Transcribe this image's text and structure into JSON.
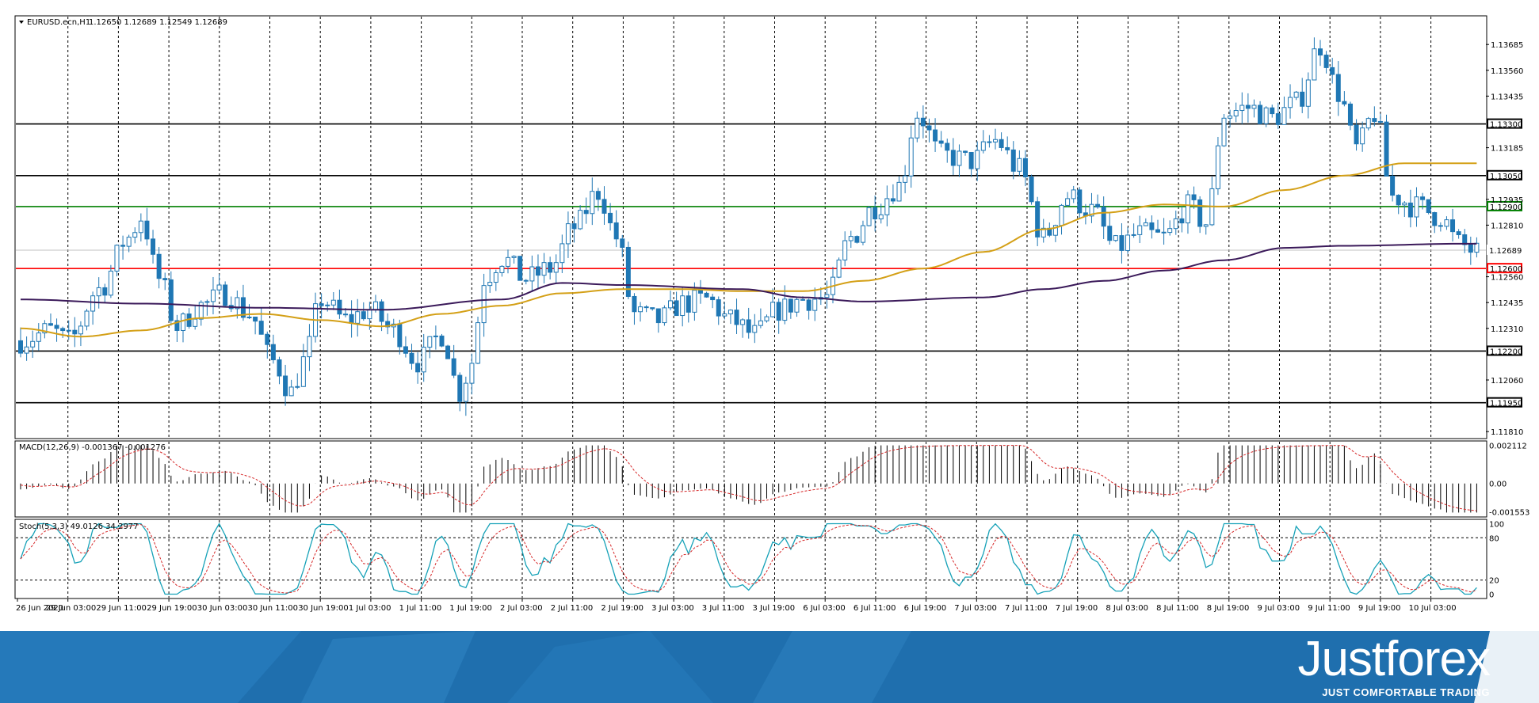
{
  "chart_header": {
    "symbol": "EURUSD.ecn,H1",
    "ohlc": "1.12650 1.12689 1.12549 1.12689"
  },
  "macd_header": "MACD(12,26,9) -0.001367 -0.001276",
  "stoch_header": "Stoch(5,3,3) 49.0126 34.2977",
  "brand": {
    "name": "Justforex",
    "tagline": "JUST COMFORTABLE TRADING"
  },
  "colors": {
    "up_candle": "#1f77b4",
    "down_candle": "#1f77b4",
    "ma_fast": "#d4a017",
    "ma_slow": "#3b1a5a",
    "resistance_green": "#008000",
    "support_red": "#ff0000",
    "level_black": "#000000",
    "macd_signal": "#d62728",
    "stoch_main": "#17a2b8",
    "stoch_signal": "#d62728",
    "banner": "#1f6fae"
  },
  "chart_data": [
    {
      "type": "candlestick",
      "title": "EURUSD.ecn,H1",
      "x_ticks": [
        "26 Jun 2020",
        "29 Jun 03:00",
        "29 Jun 11:00",
        "29 Jun 19:00",
        "30 Jun 03:00",
        "30 Jun 11:00",
        "30 Jun 19:00",
        "1 Jul 03:00",
        "1 Jul 11:00",
        "1 Jul 19:00",
        "2 Jul 03:00",
        "2 Jul 11:00",
        "2 Jul 19:00",
        "3 Jul 03:00",
        "3 Jul 11:00",
        "3 Jul 19:00",
        "6 Jul 03:00",
        "6 Jul 11:00",
        "6 Jul 19:00",
        "7 Jul 03:00",
        "7 Jul 11:00",
        "7 Jul 19:00",
        "8 Jul 03:00",
        "8 Jul 11:00",
        "8 Jul 19:00",
        "9 Jul 03:00",
        "9 Jul 11:00",
        "9 Jul 19:00",
        "10 Jul 03:00"
      ],
      "y_ticks": [
        "1.13685",
        "1.13560",
        "1.13435",
        "1.13185",
        "1.12935",
        "1.12810",
        "1.12560",
        "1.12435",
        "1.12310",
        "1.12060",
        "1.11810"
      ],
      "ylim": [
        1.1178,
        1.1382
      ],
      "horizontal_levels": [
        {
          "value": 1.133,
          "label": "1.13300",
          "color": "#000000"
        },
        {
          "value": 1.1305,
          "label": "1.13050",
          "color": "#000000"
        },
        {
          "value": 1.129,
          "label": "1.12900",
          "color": "#008000"
        },
        {
          "value": 1.12689,
          "label": "1.12689",
          "color": "#c0c0c0"
        },
        {
          "value": 1.126,
          "label": "1.12600",
          "color": "#ff0000"
        },
        {
          "value": 1.122,
          "label": "1.12200",
          "color": "#000000"
        },
        {
          "value": 1.1195,
          "label": "1.11950",
          "color": "#000000"
        }
      ],
      "ma_fast_anchors": [
        [
          0,
          1.1231
        ],
        [
          10,
          1.1227
        ],
        [
          20,
          1.123
        ],
        [
          30,
          1.1236
        ],
        [
          40,
          1.1238
        ],
        [
          50,
          1.1235
        ],
        [
          60,
          1.1232
        ],
        [
          70,
          1.1238
        ],
        [
          80,
          1.1242
        ],
        [
          90,
          1.1248
        ],
        [
          100,
          1.125
        ],
        [
          110,
          1.125
        ],
        [
          120,
          1.1249
        ],
        [
          130,
          1.1249
        ],
        [
          140,
          1.1254
        ],
        [
          150,
          1.126
        ],
        [
          160,
          1.1268
        ],
        [
          170,
          1.1279
        ],
        [
          180,
          1.1287
        ],
        [
          190,
          1.1291
        ],
        [
          200,
          1.129
        ],
        [
          210,
          1.1298
        ],
        [
          220,
          1.1305
        ],
        [
          230,
          1.1311
        ],
        [
          240,
          1.1311
        ]
      ],
      "ma_slow_anchors": [
        [
          0,
          1.1245
        ],
        [
          20,
          1.1243
        ],
        [
          40,
          1.1241
        ],
        [
          60,
          1.124
        ],
        [
          80,
          1.1245
        ],
        [
          90,
          1.1253
        ],
        [
          100,
          1.1252
        ],
        [
          120,
          1.125
        ],
        [
          130,
          1.1246
        ],
        [
          140,
          1.1244
        ],
        [
          160,
          1.1246
        ],
        [
          170,
          1.125
        ],
        [
          180,
          1.1254
        ],
        [
          190,
          1.1259
        ],
        [
          200,
          1.1264
        ],
        [
          210,
          1.127
        ],
        [
          220,
          1.1271
        ],
        [
          240,
          1.1272
        ]
      ],
      "price_anchors": [
        [
          0,
          1.1225
        ],
        [
          5,
          1.123
        ],
        [
          8,
          1.1225
        ],
        [
          13,
          1.125
        ],
        [
          18,
          1.1275
        ],
        [
          20,
          1.1285
        ],
        [
          23,
          1.1255
        ],
        [
          26,
          1.1232
        ],
        [
          30,
          1.1242
        ],
        [
          34,
          1.1248
        ],
        [
          38,
          1.1238
        ],
        [
          42,
          1.1215
        ],
        [
          45,
          1.12
        ],
        [
          47,
          1.1215
        ],
        [
          50,
          1.1245
        ],
        [
          54,
          1.1235
        ],
        [
          58,
          1.124
        ],
        [
          62,
          1.123
        ],
        [
          66,
          1.1215
        ],
        [
          70,
          1.1228
        ],
        [
          73,
          1.12
        ],
        [
          75,
          1.1215
        ],
        [
          77,
          1.1255
        ],
        [
          80,
          1.1265
        ],
        [
          84,
          1.1255
        ],
        [
          88,
          1.126
        ],
        [
          92,
          1.128
        ],
        [
          96,
          1.1297
        ],
        [
          99,
          1.1275
        ],
        [
          102,
          1.1238
        ],
        [
          106,
          1.1235
        ],
        [
          110,
          1.1243
        ],
        [
          114,
          1.1245
        ],
        [
          118,
          1.1235
        ],
        [
          122,
          1.1228
        ],
        [
          126,
          1.124
        ],
        [
          130,
          1.1245
        ],
        [
          134,
          1.1246
        ],
        [
          138,
          1.1275
        ],
        [
          142,
          1.129
        ],
        [
          146,
          1.13
        ],
        [
          149,
          1.1335
        ],
        [
          153,
          1.1315
        ],
        [
          158,
          1.1312
        ],
        [
          162,
          1.1322
        ],
        [
          166,
          1.1308
        ],
        [
          170,
          1.1275
        ],
        [
          174,
          1.1295
        ],
        [
          178,
          1.1288
        ],
        [
          182,
          1.127
        ],
        [
          186,
          1.1277
        ],
        [
          190,
          1.1275
        ],
        [
          194,
          1.129
        ],
        [
          197,
          1.1282
        ],
        [
          200,
          1.1335
        ],
        [
          204,
          1.1338
        ],
        [
          208,
          1.1333
        ],
        [
          212,
          1.134
        ],
        [
          216,
          1.1368
        ],
        [
          219,
          1.1345
        ],
        [
          222,
          1.1318
        ],
        [
          225,
          1.1335
        ],
        [
          228,
          1.1295
        ],
        [
          232,
          1.129
        ],
        [
          236,
          1.1285
        ],
        [
          239,
          1.1272
        ],
        [
          242,
          1.1268
        ]
      ]
    },
    {
      "type": "bar",
      "title": "MACD(12,26,9) -0.001367 -0.001276",
      "y_ticks": [
        "0.002112",
        "0.00",
        "-0.001553"
      ],
      "ylim": [
        -0.0018,
        0.0023
      ]
    },
    {
      "type": "line",
      "title": "Stoch(5,3,3) 49.0126 34.2977",
      "y_ticks": [
        "100",
        "80",
        "20",
        "0"
      ],
      "ylim": [
        -5,
        105
      ],
      "levels": [
        80,
        20
      ],
      "series": [
        {
          "name": "Stoch(5,3,3)"
        }
      ]
    }
  ]
}
